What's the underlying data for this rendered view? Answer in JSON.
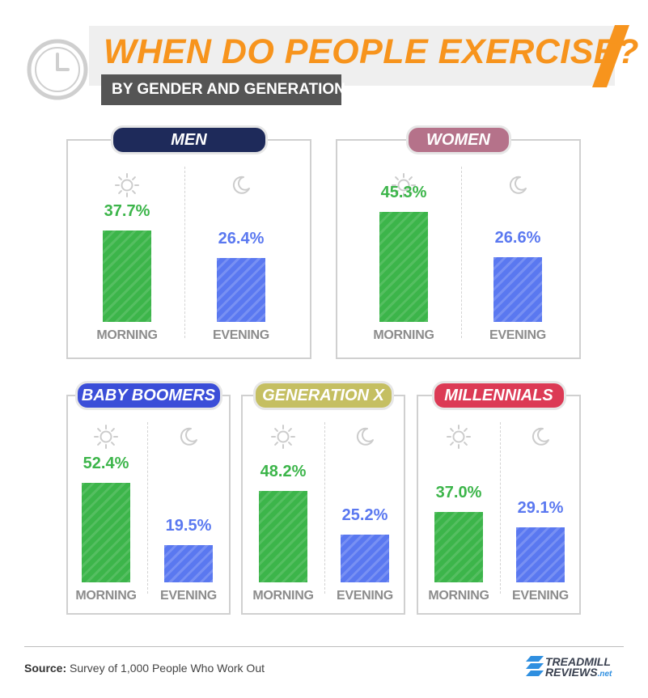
{
  "title": "WHEN DO PEOPLE EXERCISE?",
  "subtitle": "BY GENDER AND GENERATION",
  "colors": {
    "orange": "#f7941d",
    "morning": "#3cb54a",
    "evening": "#5a78f0"
  },
  "chart_data": [
    {
      "type": "bar",
      "title": "MEN",
      "pill_color": "#1e2a5a",
      "categories": [
        "MORNING",
        "EVENING"
      ],
      "values": [
        37.7,
        26.4
      ],
      "value_labels": [
        "37.7%",
        "26.4%"
      ],
      "icons": [
        "sun-icon",
        "moon-icon"
      ]
    },
    {
      "type": "bar",
      "title": "WOMEN",
      "pill_color": "#b5728a",
      "categories": [
        "MORNING",
        "EVENING"
      ],
      "values": [
        45.3,
        26.6
      ],
      "value_labels": [
        "45.3%",
        "26.6%"
      ],
      "icons": [
        "sun-icon",
        "moon-icon"
      ]
    },
    {
      "type": "bar",
      "title": "BABY BOOMERS",
      "pill_color": "#3b4ed8",
      "categories": [
        "MORNING",
        "EVENING"
      ],
      "values": [
        52.4,
        19.5
      ],
      "value_labels": [
        "52.4%",
        "19.5%"
      ],
      "icons": [
        "sun-icon",
        "moon-icon"
      ]
    },
    {
      "type": "bar",
      "title": "GENERATION X",
      "pill_color": "#c5bf62",
      "categories": [
        "MORNING",
        "EVENING"
      ],
      "values": [
        48.2,
        25.2
      ],
      "value_labels": [
        "48.2%",
        "25.2%"
      ],
      "icons": [
        "sun-icon",
        "moon-icon"
      ]
    },
    {
      "type": "bar",
      "title": "MILLENNIALS",
      "pill_color": "#dc3a55",
      "categories": [
        "MORNING",
        "EVENING"
      ],
      "values": [
        37.0,
        29.1
      ],
      "value_labels": [
        "37.0%",
        "29.1%"
      ],
      "icons": [
        "sun-icon",
        "moon-icon"
      ]
    }
  ],
  "footer": {
    "source_label": "Source:",
    "source_text": " Survey of 1,000 People Who Work Out",
    "logo_line1": "TREADMILL",
    "logo_line2": "REVIEWS",
    "logo_suffix": ".net"
  }
}
